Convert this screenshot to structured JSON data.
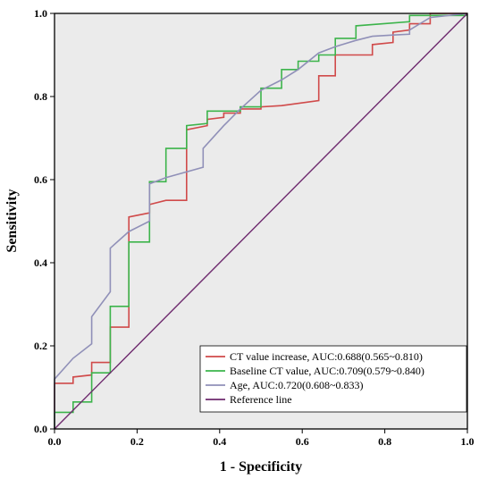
{
  "chart_data": {
    "type": "line",
    "title": "",
    "xlabel": "1 - Specificity",
    "ylabel": "Sensitivity",
    "xlim": [
      0,
      1
    ],
    "ylim": [
      0,
      1
    ],
    "xticks": [
      "0.0",
      "0.2",
      "0.4",
      "0.6",
      "0.8",
      "1.0"
    ],
    "yticks": [
      "0.0",
      "0.2",
      "0.4",
      "0.6",
      "0.8",
      "1.0"
    ],
    "grid": false,
    "legend_position": "bottom-right",
    "background": "#ebebeb",
    "series": [
      {
        "name": "CT value increase, AUC:0.688(0.565~0.810)",
        "color": "#d04a4a",
        "x": [
          0,
          0,
          0.045,
          0.045,
          0.09,
          0.09,
          0.135,
          0.135,
          0.18,
          0.18,
          0.23,
          0.23,
          0.27,
          0.32,
          0.32,
          0.37,
          0.37,
          0.41,
          0.41,
          0.45,
          0.45,
          0.5,
          0.5,
          0.55,
          0.64,
          0.64,
          0.68,
          0.68,
          0.77,
          0.77,
          0.82,
          0.82,
          0.86,
          0.86,
          0.91,
          0.91,
          1.0
        ],
        "y": [
          0,
          0.11,
          0.11,
          0.125,
          0.13,
          0.16,
          0.16,
          0.245,
          0.245,
          0.51,
          0.52,
          0.54,
          0.55,
          0.55,
          0.72,
          0.73,
          0.745,
          0.75,
          0.76,
          0.76,
          0.77,
          0.77,
          0.775,
          0.778,
          0.79,
          0.85,
          0.85,
          0.9,
          0.9,
          0.925,
          0.93,
          0.955,
          0.96,
          0.975,
          0.975,
          1.0,
          1.0
        ]
      },
      {
        "name": "Baseline CT value, AUC:0.709(0.579~0.840)",
        "color": "#3cb44b",
        "x": [
          0,
          0,
          0.045,
          0.045,
          0.09,
          0.09,
          0.135,
          0.135,
          0.18,
          0.18,
          0.23,
          0.23,
          0.27,
          0.27,
          0.32,
          0.32,
          0.37,
          0.37,
          0.45,
          0.45,
          0.5,
          0.5,
          0.55,
          0.55,
          0.59,
          0.59,
          0.64,
          0.64,
          0.68,
          0.68,
          0.73,
          0.73,
          0.86,
          0.86,
          1.0
        ],
        "y": [
          0,
          0.04,
          0.04,
          0.065,
          0.065,
          0.135,
          0.135,
          0.295,
          0.295,
          0.45,
          0.45,
          0.595,
          0.595,
          0.675,
          0.675,
          0.73,
          0.735,
          0.765,
          0.765,
          0.775,
          0.775,
          0.82,
          0.82,
          0.865,
          0.865,
          0.885,
          0.885,
          0.9,
          0.9,
          0.94,
          0.94,
          0.97,
          0.98,
          0.995,
          0.995
        ]
      },
      {
        "name": "Age, AUC:0.720(0.608~0.833)",
        "color": "#9090b8",
        "x": [
          0,
          0,
          0.045,
          0.09,
          0.09,
          0.135,
          0.135,
          0.18,
          0.23,
          0.23,
          0.27,
          0.36,
          0.36,
          0.41,
          0.45,
          0.5,
          0.55,
          0.59,
          0.64,
          0.68,
          0.73,
          0.77,
          0.82,
          0.86,
          0.86,
          0.91,
          1.0
        ],
        "y": [
          0,
          0.12,
          0.17,
          0.205,
          0.27,
          0.33,
          0.435,
          0.475,
          0.5,
          0.59,
          0.605,
          0.63,
          0.675,
          0.73,
          0.77,
          0.815,
          0.84,
          0.865,
          0.905,
          0.92,
          0.935,
          0.945,
          0.948,
          0.95,
          0.96,
          0.99,
          1.0
        ]
      },
      {
        "name": "Reference line",
        "color": "#6e2a6e",
        "x": [
          0,
          1
        ],
        "y": [
          0,
          1
        ]
      }
    ]
  }
}
